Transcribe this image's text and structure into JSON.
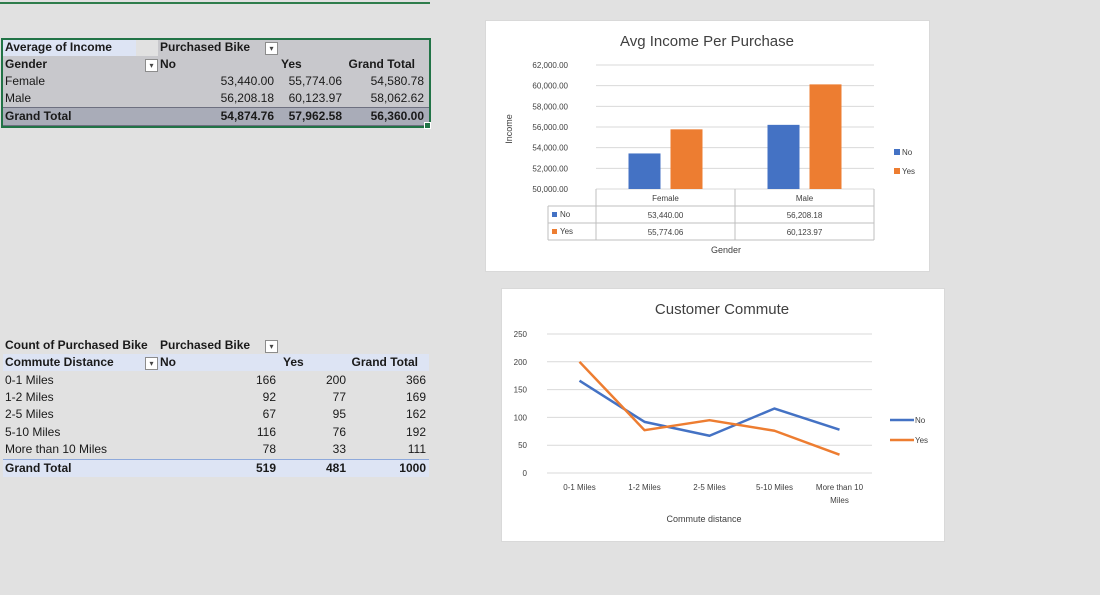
{
  "pivot_income": {
    "corner_label": "Average of Income",
    "column_field": "Purchased Bike",
    "row_field": "Gender",
    "col_headers": [
      "No",
      "Yes",
      "Grand Total"
    ],
    "rows": [
      {
        "label": "Female",
        "values": [
          "53,440.00",
          "55,774.06",
          "54,580.78"
        ]
      },
      {
        "label": "Male",
        "values": [
          "56,208.18",
          "60,123.97",
          "58,062.62"
        ]
      }
    ],
    "total": {
      "label": "Grand Total",
      "values": [
        "54,874.76",
        "57,962.58",
        "56,360.00"
      ]
    }
  },
  "pivot_commute": {
    "corner_label": "Count of Purchased Bike",
    "column_field": "Purchased Bike",
    "row_field": "Commute Distance",
    "col_headers": [
      "No",
      "Yes",
      "Grand Total"
    ],
    "rows": [
      {
        "label": "0-1 Miles",
        "values": [
          "166",
          "200",
          "366"
        ]
      },
      {
        "label": "1-2 Miles",
        "values": [
          "92",
          "77",
          "169"
        ]
      },
      {
        "label": "2-5 Miles",
        "values": [
          "67",
          "95",
          "162"
        ]
      },
      {
        "label": "5-10 Miles",
        "values": [
          "116",
          "76",
          "192"
        ]
      },
      {
        "label": "More than 10 Miles",
        "values": [
          "78",
          "33",
          "111"
        ]
      }
    ],
    "total": {
      "label": "Grand Total",
      "values": [
        "519",
        "481",
        "1000"
      ]
    }
  },
  "chart_data": [
    {
      "type": "bar",
      "title": "Avg Income Per Purchase",
      "xlabel": "Gender",
      "ylabel": "Income",
      "categories": [
        "Female",
        "Male"
      ],
      "series": [
        {
          "name": "No",
          "values": [
            53440.0,
            56208.18
          ],
          "labels": [
            "53,440.00",
            "56,208.18"
          ],
          "color": "#4472C4"
        },
        {
          "name": "Yes",
          "values": [
            55774.06,
            60123.97
          ],
          "labels": [
            "55,774.06",
            "60,123.97"
          ],
          "color": "#ED7D31"
        }
      ],
      "ylim": [
        50000,
        62000
      ],
      "yticks": [
        "62,000.00",
        "60,000.00",
        "58,000.00",
        "56,000.00",
        "54,000.00",
        "52,000.00",
        "50,000.00"
      ],
      "grid": true,
      "legend": "right",
      "data_table": true
    },
    {
      "type": "line",
      "title": "Customer Commute",
      "xlabel": "Commute distance",
      "ylabel": "",
      "categories": [
        "0-1 Miles",
        "1-2 Miles",
        "2-5 Miles",
        "5-10 Miles",
        "More than 10 Miles"
      ],
      "category_lines": [
        [
          "0-1 Miles"
        ],
        [
          "1-2 Miles"
        ],
        [
          "2-5 Miles"
        ],
        [
          "5-10 Miles"
        ],
        [
          "More than 10",
          "Miles"
        ]
      ],
      "series": [
        {
          "name": "No",
          "values": [
            166,
            92,
            67,
            116,
            78
          ],
          "color": "#4472C4"
        },
        {
          "name": "Yes",
          "values": [
            200,
            77,
            95,
            76,
            33
          ],
          "color": "#ED7D31"
        }
      ],
      "ylim": [
        0,
        250
      ],
      "yticks": [
        "250",
        "200",
        "150",
        "100",
        "50",
        "0"
      ],
      "grid": true,
      "legend": "right"
    }
  ]
}
